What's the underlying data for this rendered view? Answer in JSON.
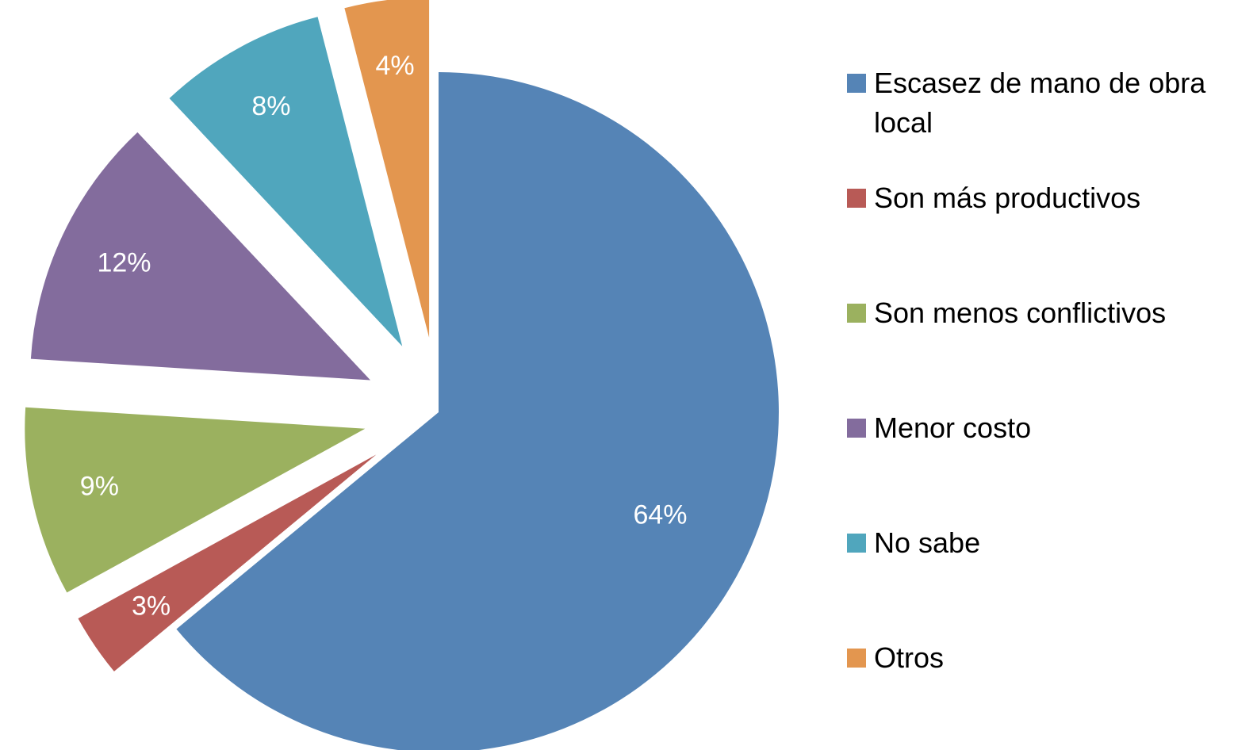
{
  "chart_data": {
    "type": "pie",
    "categories": [
      "Escasez de mano de obra local",
      "Son más productivos",
      "Son menos conflictivos",
      "Menor costo",
      "No sabe",
      "Otros"
    ],
    "values": [
      64,
      3,
      9,
      12,
      8,
      4
    ],
    "value_labels": [
      "64%",
      "3%",
      "9%",
      "12%",
      "8%",
      "4%"
    ],
    "colors": [
      "#5584b6",
      "#b85a56",
      "#9bb15f",
      "#836c9d",
      "#50a6bd",
      "#e3964f"
    ],
    "legend": "right"
  }
}
